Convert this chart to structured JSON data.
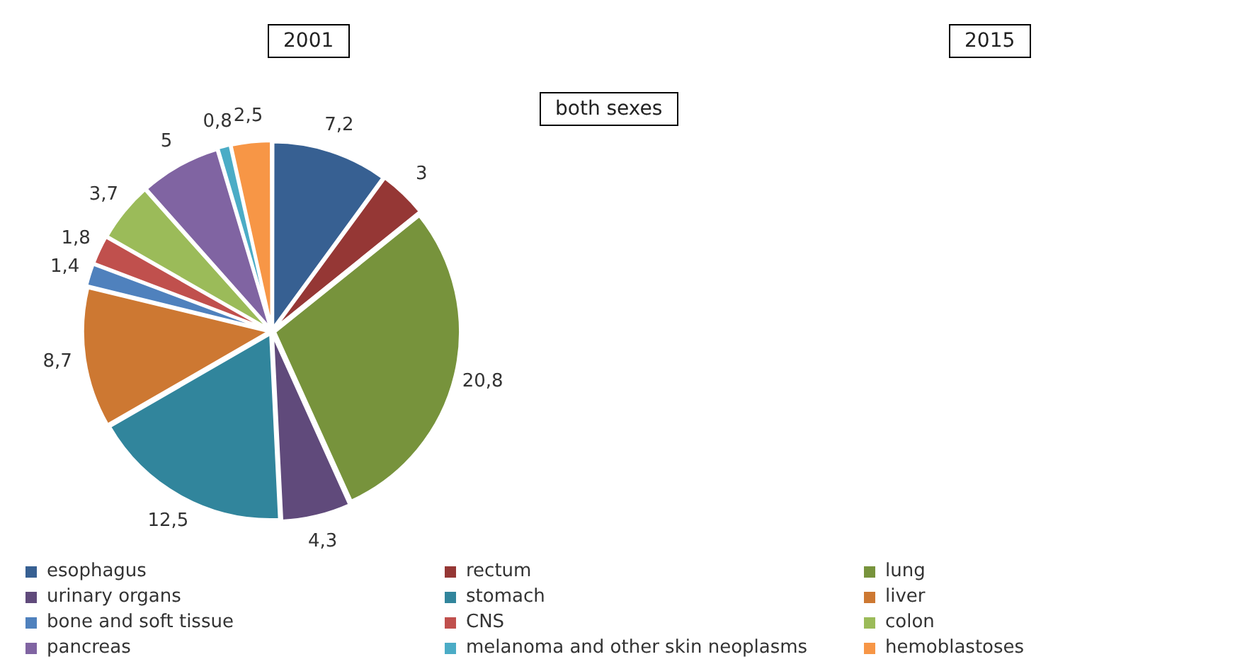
{
  "chart_data": {
    "type": "pie",
    "title": "2001",
    "annotations": [
      "both sexes",
      "2015"
    ],
    "categories": [
      "esophagus",
      "rectum",
      "lung",
      "urinary organs",
      "stomach",
      "liver",
      "bone and soft tissue",
      "CNS",
      "colon",
      "pancreas",
      "melanoma and other skin neoplasms",
      "hemoblastoses"
    ],
    "values": [
      7.2,
      3,
      20.8,
      4.3,
      12.5,
      8.7,
      1.4,
      1.8,
      3.7,
      5,
      0.8,
      2.5
    ],
    "value_labels": [
      "7,2",
      "3",
      "20,8",
      "4,3",
      "12,5",
      "8,7",
      "1,4",
      "1,8",
      "3,7",
      "5",
      "0,8",
      "2,5"
    ],
    "colors": [
      "#376092",
      "#953735",
      "#77933c",
      "#604a7b",
      "#31859c",
      "#cd7832",
      "#4f81bd",
      "#c0504d",
      "#9bbb59",
      "#8064a2",
      "#4bacc6",
      "#f79646"
    ],
    "legend": "bottom"
  }
}
